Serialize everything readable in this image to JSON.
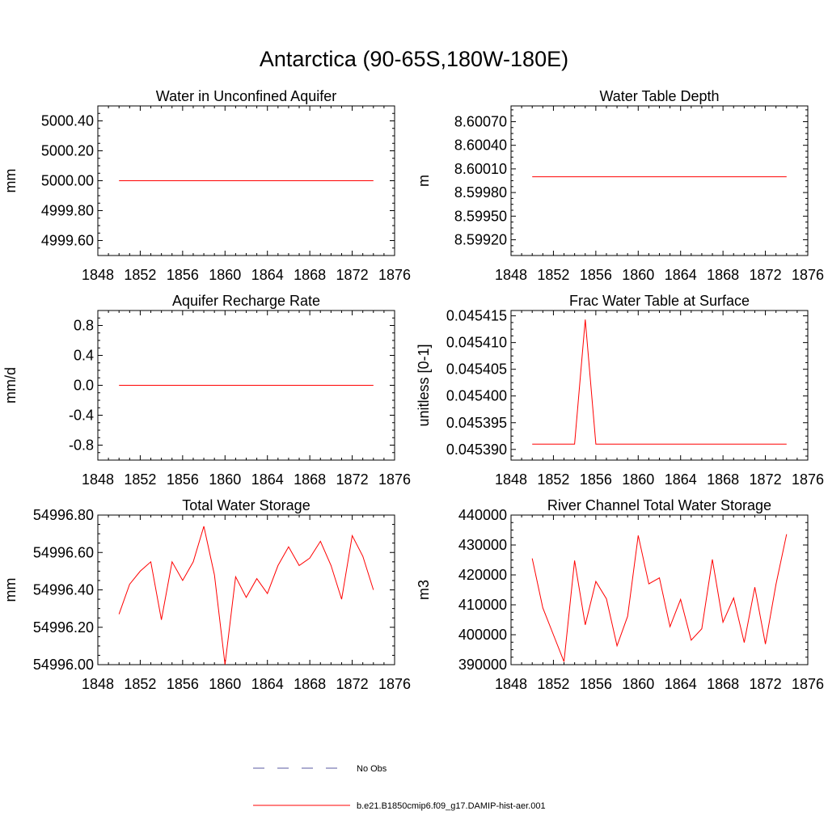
{
  "figure": {
    "title": "Antarctica (90-65S,180W-180E)",
    "series_color": "#ff0000",
    "obs_color": "#5a5aa0"
  },
  "legend": {
    "obs_label": "No Obs",
    "model_label": "b.e21.B1850cmip6.f09_g17.DAMIP-hist-aer.001"
  },
  "chart_data": [
    {
      "type": "line",
      "title": "Water in Unconfined Aquifer",
      "ylabel": "mm",
      "xlim": [
        1848,
        1876
      ],
      "xticks": [
        1848,
        1852,
        1856,
        1860,
        1864,
        1868,
        1872,
        1876
      ],
      "xticklabels": [
        "1848",
        "1852",
        "1856",
        "1860",
        "1864",
        "1868",
        "1872",
        "1876"
      ],
      "ylim": [
        4999.5,
        5000.5
      ],
      "yticks": [
        4999.6,
        4999.8,
        5000.0,
        5000.2,
        5000.4
      ],
      "yticklabels": [
        "4999.60",
        "4999.80",
        "5000.00",
        "5000.20",
        "5000.40"
      ],
      "series": [
        {
          "x": [
            1850,
            1851,
            1852,
            1853,
            1854,
            1855,
            1856,
            1857,
            1858,
            1859,
            1860,
            1861,
            1862,
            1863,
            1864,
            1865,
            1866,
            1867,
            1868,
            1869,
            1870,
            1871,
            1872,
            1873,
            1874
          ],
          "y": [
            5000,
            5000,
            5000,
            5000,
            5000,
            5000,
            5000,
            5000,
            5000,
            5000,
            5000,
            5000,
            5000,
            5000,
            5000,
            5000,
            5000,
            5000,
            5000,
            5000,
            5000,
            5000,
            5000,
            5000,
            5000
          ]
        }
      ]
    },
    {
      "type": "line",
      "title": "Water Table Depth",
      "ylabel": "m",
      "xlim": [
        1848,
        1876
      ],
      "xticks": [
        1848,
        1852,
        1856,
        1860,
        1864,
        1868,
        1872,
        1876
      ],
      "xticklabels": [
        "1848",
        "1852",
        "1856",
        "1860",
        "1864",
        "1868",
        "1872",
        "1876"
      ],
      "ylim": [
        8.599,
        8.6009
      ],
      "yticks": [
        8.5992,
        8.5995,
        8.5998,
        8.6001,
        8.6004,
        8.6007
      ],
      "yticklabels": [
        "8.59920",
        "8.59950",
        "8.59980",
        "8.60010",
        "8.60040",
        "8.60070"
      ],
      "series": [
        {
          "x": [
            1850,
            1851,
            1852,
            1853,
            1854,
            1855,
            1856,
            1857,
            1858,
            1859,
            1860,
            1861,
            1862,
            1863,
            1864,
            1865,
            1866,
            1867,
            1868,
            1869,
            1870,
            1871,
            1872,
            1873,
            1874
          ],
          "y": [
            8.6,
            8.6,
            8.6,
            8.6,
            8.6,
            8.6,
            8.6,
            8.6,
            8.6,
            8.6,
            8.6,
            8.6,
            8.6,
            8.6,
            8.6,
            8.6,
            8.6,
            8.6,
            8.6,
            8.6,
            8.6,
            8.6,
            8.6,
            8.6,
            8.6
          ]
        }
      ]
    },
    {
      "type": "line",
      "title": "Aquifer Recharge Rate",
      "ylabel": "mm/d",
      "xlim": [
        1848,
        1876
      ],
      "xticks": [
        1848,
        1852,
        1856,
        1860,
        1864,
        1868,
        1872,
        1876
      ],
      "xticklabels": [
        "1848",
        "1852",
        "1856",
        "1860",
        "1864",
        "1868",
        "1872",
        "1876"
      ],
      "ylim": [
        -1.0,
        1.0
      ],
      "yticks": [
        -0.8,
        -0.4,
        0.0,
        0.4,
        0.8
      ],
      "yticklabels": [
        "-0.8",
        "-0.4",
        "0.0",
        "0.4",
        "0.8"
      ],
      "series": [
        {
          "x": [
            1850,
            1851,
            1852,
            1853,
            1854,
            1855,
            1856,
            1857,
            1858,
            1859,
            1860,
            1861,
            1862,
            1863,
            1864,
            1865,
            1866,
            1867,
            1868,
            1869,
            1870,
            1871,
            1872,
            1873,
            1874
          ],
          "y": [
            0,
            0,
            0,
            0,
            0,
            0,
            0,
            0,
            0,
            0,
            0,
            0,
            0,
            0,
            0,
            0,
            0,
            0,
            0,
            0,
            0,
            0,
            0,
            0,
            0
          ]
        }
      ]
    },
    {
      "type": "line",
      "title": "Frac Water Table at Surface",
      "ylabel": "unitless [0-1]",
      "xlim": [
        1848,
        1876
      ],
      "xticks": [
        1848,
        1852,
        1856,
        1860,
        1864,
        1868,
        1872,
        1876
      ],
      "xticklabels": [
        "1848",
        "1852",
        "1856",
        "1860",
        "1864",
        "1868",
        "1872",
        "1876"
      ],
      "ylim": [
        0.045388,
        0.045416
      ],
      "yticks": [
        0.04539,
        0.045395,
        0.0454,
        0.045405,
        0.04541,
        0.045415
      ],
      "yticklabels": [
        "0.045390",
        "0.045395",
        "0.045400",
        "0.045405",
        "0.045410",
        "0.045415"
      ],
      "series": [
        {
          "x": [
            1850,
            1851,
            1852,
            1853,
            1854,
            1855,
            1856,
            1857,
            1858,
            1859,
            1860,
            1861,
            1862,
            1863,
            1864,
            1865,
            1866,
            1867,
            1868,
            1869,
            1870,
            1871,
            1872,
            1873,
            1874
          ],
          "y": [
            0.045391,
            0.045391,
            0.045391,
            0.045391,
            0.045391,
            0.0454143,
            0.045391,
            0.045391,
            0.045391,
            0.045391,
            0.045391,
            0.045391,
            0.045391,
            0.045391,
            0.045391,
            0.045391,
            0.045391,
            0.045391,
            0.045391,
            0.045391,
            0.045391,
            0.045391,
            0.045391,
            0.045391,
            0.045391
          ]
        }
      ]
    },
    {
      "type": "line",
      "title": "Total Water Storage",
      "ylabel": "mm",
      "xlim": [
        1848,
        1876
      ],
      "xticks": [
        1848,
        1852,
        1856,
        1860,
        1864,
        1868,
        1872,
        1876
      ],
      "xticklabels": [
        "1848",
        "1852",
        "1856",
        "1860",
        "1864",
        "1868",
        "1872",
        "1876"
      ],
      "ylim": [
        54996.0,
        54996.8
      ],
      "yticks": [
        54996.0,
        54996.2,
        54996.4,
        54996.6,
        54996.8
      ],
      "yticklabels": [
        "54996.00",
        "54996.20",
        "54996.40",
        "54996.60",
        "54996.80"
      ],
      "series": [
        {
          "x": [
            1850,
            1851,
            1852,
            1853,
            1854,
            1855,
            1856,
            1857,
            1858,
            1859,
            1860,
            1861,
            1862,
            1863,
            1864,
            1865,
            1866,
            1867,
            1868,
            1869,
            1870,
            1871,
            1872,
            1873,
            1874
          ],
          "y": [
            54996.27,
            54996.43,
            54996.5,
            54996.55,
            54996.24,
            54996.55,
            54996.45,
            54996.55,
            54996.74,
            54996.48,
            54996.0,
            54996.47,
            54996.36,
            54996.46,
            54996.38,
            54996.53,
            54996.63,
            54996.53,
            54996.57,
            54996.66,
            54996.53,
            54996.35,
            54996.69,
            54996.58,
            54996.4
          ]
        }
      ]
    },
    {
      "type": "line",
      "title": "River Channel Total Water Storage",
      "ylabel": "m3",
      "xlim": [
        1848,
        1876
      ],
      "xticks": [
        1848,
        1852,
        1856,
        1860,
        1864,
        1868,
        1872,
        1876
      ],
      "xticklabels": [
        "1848",
        "1852",
        "1856",
        "1860",
        "1864",
        "1868",
        "1872",
        "1876"
      ],
      "ylim": [
        390000,
        440000
      ],
      "yticks": [
        390000,
        400000,
        410000,
        420000,
        430000,
        440000
      ],
      "yticklabels": [
        "390000",
        "400000",
        "410000",
        "420000",
        "430000",
        "440000"
      ],
      "series": [
        {
          "x": [
            1850,
            1851,
            1852,
            1853,
            1854,
            1855,
            1856,
            1857,
            1858,
            1859,
            1860,
            1861,
            1862,
            1863,
            1864,
            1865,
            1866,
            1867,
            1868,
            1869,
            1870,
            1871,
            1872,
            1873,
            1874
          ],
          "y": [
            425500,
            409000,
            400000,
            391000,
            424800,
            403300,
            417800,
            412000,
            396300,
            406200,
            433200,
            417000,
            419000,
            402700,
            411800,
            398200,
            402000,
            425200,
            404200,
            412300,
            397400,
            415900,
            396900,
            416900,
            433600
          ]
        }
      ]
    }
  ]
}
